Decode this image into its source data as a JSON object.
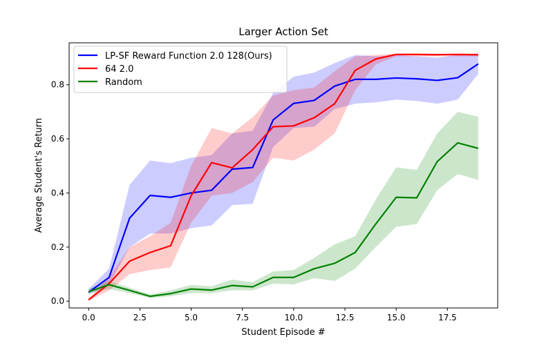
{
  "chart_data": {
    "type": "line",
    "title": "Larger Action Set",
    "xlabel": "Student Episode #",
    "ylabel": "Average Student's Return",
    "xlim": [
      -0.95,
      19.95
    ],
    "ylim": [
      -0.025,
      0.955
    ],
    "xticks": [
      0.0,
      2.5,
      5.0,
      7.5,
      10.0,
      12.5,
      15.0,
      17.5
    ],
    "xtick_labels": [
      "0.0",
      "2.5",
      "5.0",
      "7.5",
      "10.0",
      "12.5",
      "15.0",
      "17.5"
    ],
    "yticks": [
      0.0,
      0.2,
      0.4,
      0.6,
      0.8
    ],
    "ytick_labels": [
      "0.0",
      "0.2",
      "0.4",
      "0.6",
      "0.8"
    ],
    "grid": false,
    "legend_position": "top-left",
    "x": [
      0,
      1,
      2,
      3,
      4,
      5,
      6,
      7,
      8,
      9,
      10,
      11,
      12,
      13,
      14,
      15,
      16,
      17,
      18,
      19
    ],
    "series": [
      {
        "name": "LP-SF Reward Function 2.0 128(Ours)",
        "color": "#0000ff",
        "values": [
          0.033,
          0.088,
          0.307,
          0.391,
          0.384,
          0.4,
          0.41,
          0.488,
          0.494,
          0.67,
          0.731,
          0.742,
          0.795,
          0.82,
          0.82,
          0.825,
          0.822,
          0.816,
          0.826,
          0.877
        ],
        "lower": [
          0.025,
          0.06,
          0.2,
          0.25,
          0.25,
          0.27,
          0.28,
          0.355,
          0.36,
          0.57,
          0.64,
          0.645,
          0.71,
          0.73,
          0.735,
          0.745,
          0.74,
          0.73,
          0.745,
          0.84
        ],
        "upper": [
          0.045,
          0.12,
          0.43,
          0.52,
          0.51,
          0.53,
          0.54,
          0.62,
          0.63,
          0.77,
          0.83,
          0.845,
          0.88,
          0.91,
          0.905,
          0.91,
          0.905,
          0.9,
          0.91,
          0.915
        ]
      },
      {
        "name": "64 2.0",
        "color": "#ff0000",
        "values": [
          0.005,
          0.065,
          0.148,
          0.18,
          0.205,
          0.39,
          0.512,
          0.493,
          0.56,
          0.645,
          0.648,
          0.678,
          0.73,
          0.853,
          0.895,
          0.912,
          0.912,
          0.911,
          0.912,
          0.911
        ],
        "lower": [
          0.002,
          0.04,
          0.1,
          0.115,
          0.125,
          0.29,
          0.39,
          0.4,
          0.44,
          0.53,
          0.52,
          0.56,
          0.62,
          0.78,
          0.875,
          0.905,
          0.905,
          0.905,
          0.905,
          0.905
        ],
        "upper": [
          0.01,
          0.09,
          0.2,
          0.24,
          0.29,
          0.5,
          0.64,
          0.62,
          0.68,
          0.76,
          0.78,
          0.79,
          0.85,
          0.905,
          0.91,
          0.915,
          0.915,
          0.915,
          0.915,
          0.915
        ]
      },
      {
        "name": "Random",
        "color": "#008000",
        "values": [
          0.035,
          0.061,
          0.04,
          0.018,
          0.028,
          0.045,
          0.041,
          0.058,
          0.053,
          0.088,
          0.088,
          0.12,
          0.14,
          0.18,
          0.285,
          0.384,
          0.382,
          0.516,
          0.585,
          0.565
        ],
        "lower": [
          0.028,
          0.045,
          0.03,
          0.012,
          0.018,
          0.03,
          0.03,
          0.04,
          0.04,
          0.065,
          0.062,
          0.085,
          0.075,
          0.12,
          0.2,
          0.275,
          0.285,
          0.41,
          0.47,
          0.448
        ],
        "upper": [
          0.045,
          0.075,
          0.05,
          0.025,
          0.04,
          0.06,
          0.055,
          0.08,
          0.07,
          0.11,
          0.115,
          0.16,
          0.21,
          0.24,
          0.375,
          0.495,
          0.485,
          0.62,
          0.7,
          0.682
        ]
      }
    ]
  }
}
